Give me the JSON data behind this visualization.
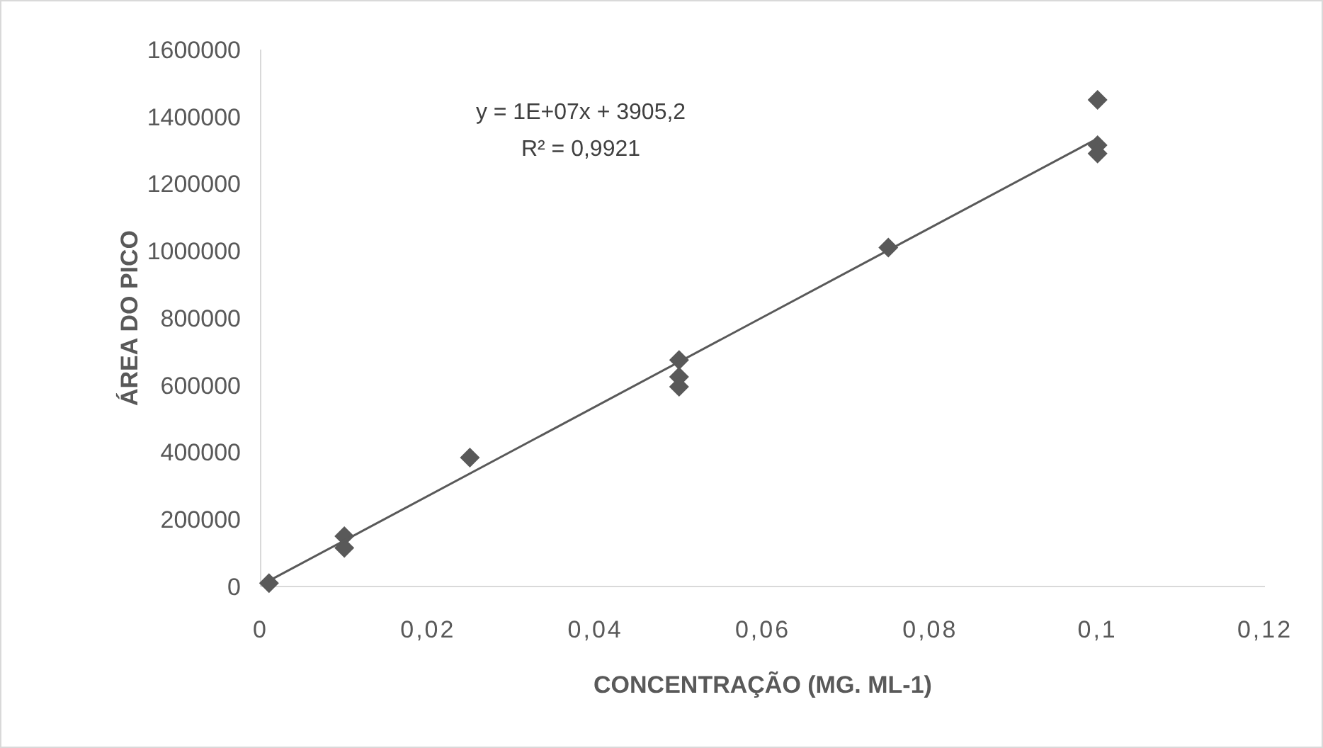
{
  "chart_data": {
    "type": "scatter",
    "xlabel": "CONCENTRAÇÃO (MG. ML-1)",
    "ylabel": "ÁREA DO PICO",
    "marker": "diamond",
    "grid": false,
    "xlim": [
      0,
      0.12
    ],
    "ylim": [
      0,
      1600000
    ],
    "xticks": [
      0,
      {
        "value": 0.02,
        "label": "0,02"
      },
      {
        "value": 0.04,
        "label": "0,04"
      },
      {
        "value": 0.06,
        "label": "0,06"
      },
      {
        "value": 0.08,
        "label": "0,08"
      },
      {
        "value": 0.1,
        "label": "0,1"
      },
      {
        "value": 0.12,
        "label": "0,12"
      }
    ],
    "yticks": [
      0,
      200000,
      400000,
      600000,
      800000,
      1000000,
      1200000,
      1400000,
      1600000
    ],
    "annotations": [
      "y = 1E+07x + 3905,2",
      "R² = 0,9921"
    ],
    "series": [
      {
        "color": "#595959",
        "x": [
          0.001,
          0.01,
          0.01,
          0.025,
          0.05,
          0.05,
          0.05,
          0.075,
          0.1,
          0.1,
          0.1
        ],
        "values": [
          10000,
          150000,
          115000,
          384000,
          675000,
          625000,
          595000,
          1010000,
          1450000,
          1315000,
          1290000
        ]
      },
      {
        "type": "line",
        "color": "#595959",
        "marker": "none",
        "x": [
          0.001,
          0.1
        ],
        "values": [
          17000,
          1335000
        ]
      }
    ]
  }
}
